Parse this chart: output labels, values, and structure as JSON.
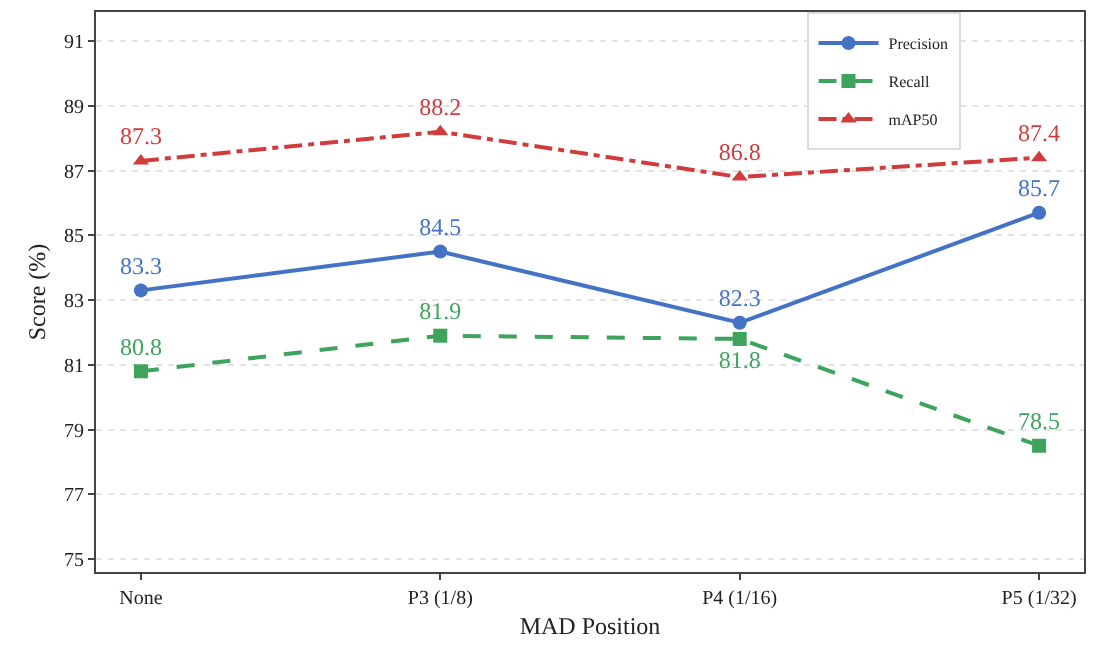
{
  "chart_data": {
    "type": "line",
    "xlabel": "MAD Position",
    "ylabel": "Score (%)",
    "categories": [
      "None",
      "P3 (1/8)",
      "P4 (1/16)",
      "P5 (1/32)"
    ],
    "series": [
      {
        "name": "Precision",
        "color": "#4472c4",
        "values": [
          83.3,
          84.5,
          82.3,
          85.7
        ],
        "marker": "circle",
        "line_style": "solid"
      },
      {
        "name": "Recall",
        "color": "#3da35d",
        "values": [
          80.8,
          81.9,
          81.8,
          78.5
        ],
        "marker": "square",
        "line_style": "dashed"
      },
      {
        "name": "mAP50",
        "color": "#d03c3c",
        "values": [
          87.3,
          88.2,
          86.8,
          87.4
        ],
        "marker": "triangle",
        "line_style": "dashdot"
      }
    ],
    "ylim": [
      74.6,
      91.9
    ],
    "yticks": [
      75,
      77,
      79,
      81,
      83,
      85,
      87,
      89,
      91
    ],
    "grid": "y",
    "legend": "top right",
    "data_labels": true
  }
}
